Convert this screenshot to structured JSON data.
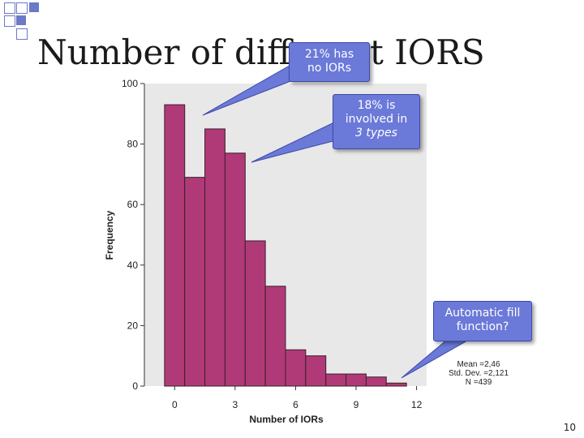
{
  "slide": {
    "title": "Number of different IORS",
    "page_number": "10"
  },
  "callouts": [
    {
      "id": "no-iors",
      "lines": [
        "21% has",
        "no IORs"
      ]
    },
    {
      "id": "three-types",
      "lines": [
        "18% is",
        "involved in",
        "3 types"
      ]
    },
    {
      "id": "autofill",
      "lines": [
        "Automatic fill",
        "function?"
      ]
    }
  ],
  "stats": [
    "Mean =2,46",
    "Std. Dev. =2,121",
    "N =439"
  ],
  "colors": {
    "bar_fill": "#b03a77",
    "bar_stroke": "#3a1f2c",
    "plot_bg": "#e8e8e8",
    "callout_bg": "#6b79d8",
    "deco_squares": "#6b79c8"
  },
  "chart_data": {
    "type": "bar",
    "title": "",
    "xlabel": "Number of IORs",
    "ylabel": "Frequency",
    "xticks": [
      "0",
      "3",
      "6",
      "9",
      "12"
    ],
    "yticks": [
      "0",
      "20",
      "40",
      "60",
      "80",
      "100"
    ],
    "ylim": [
      0,
      100
    ],
    "xlim": [
      -1.5,
      12.5
    ],
    "bin_start": 0,
    "bin_width": 1,
    "values": [
      93,
      69,
      85,
      77,
      48,
      33,
      12,
      10,
      4,
      4,
      3,
      1
    ]
  }
}
